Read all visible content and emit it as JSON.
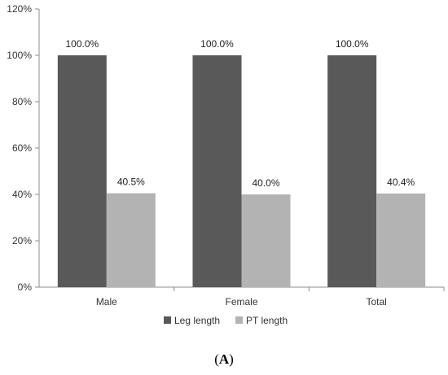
{
  "chart_data": {
    "type": "bar",
    "categories": [
      "Male",
      "Female",
      "Total"
    ],
    "series": [
      {
        "name": "Leg length",
        "values": [
          100.0,
          100.0,
          100.0
        ],
        "labels": [
          "100.0%",
          "100.0%",
          "100.0%"
        ],
        "color": "#595959"
      },
      {
        "name": "PT length",
        "values": [
          40.5,
          40.0,
          40.4
        ],
        "labels": [
          "40.5%",
          "40.0%",
          "40.4%"
        ],
        "color": "#b3b3b3"
      }
    ],
    "ylim": [
      0,
      120
    ],
    "yticks": [
      "0%",
      "20%",
      "40%",
      "60%",
      "80%",
      "100%",
      "120%"
    ],
    "grid": false,
    "legend_position": "bottom"
  },
  "panel_label": {
    "open": "(",
    "letter": "A",
    "close": ")"
  }
}
